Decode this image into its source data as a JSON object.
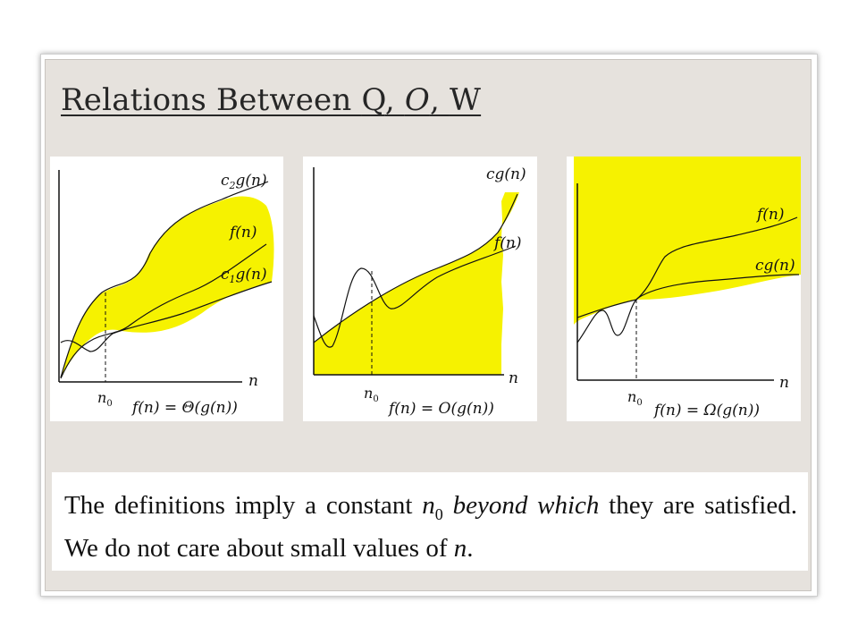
{
  "slide": {
    "title_prefix": "Relations Between ",
    "title_q": "Q",
    "title_sep1": ", ",
    "title_o": "O",
    "title_sep2": ", ",
    "title_w": "W"
  },
  "panels": [
    {
      "upper_label": "c",
      "upper_sub": "2",
      "upper_suffix": "g(n)",
      "middle_label": "f(n)",
      "lower_label": "c",
      "lower_sub": "1",
      "lower_suffix": "g(n)",
      "x_label": "n",
      "n0_label": "n",
      "n0_sub": "0",
      "caption": "f(n) = Θ(g(n))"
    },
    {
      "upper_label": "cg(n)",
      "middle_label": "f(n)",
      "x_label": "n",
      "n0_label": "n",
      "n0_sub": "0",
      "caption": "f(n) = O(g(n))"
    },
    {
      "upper_label": "f(n)",
      "middle_label": "cg(n)",
      "x_label": "n",
      "n0_label": "n",
      "n0_sub": "0",
      "caption": "f(n) = Ω(g(n))"
    }
  ],
  "note": {
    "part1": "The definitions imply a constant ",
    "n0": "n",
    "n0_sub": "0",
    "emph": "beyond which",
    "part2": " they are satisfied. We do not care about small values of ",
    "n": "n",
    "end": "."
  },
  "colors": {
    "highlight": "#f6f200",
    "slide_bg": "#e6e2dd",
    "text": "#262626"
  }
}
